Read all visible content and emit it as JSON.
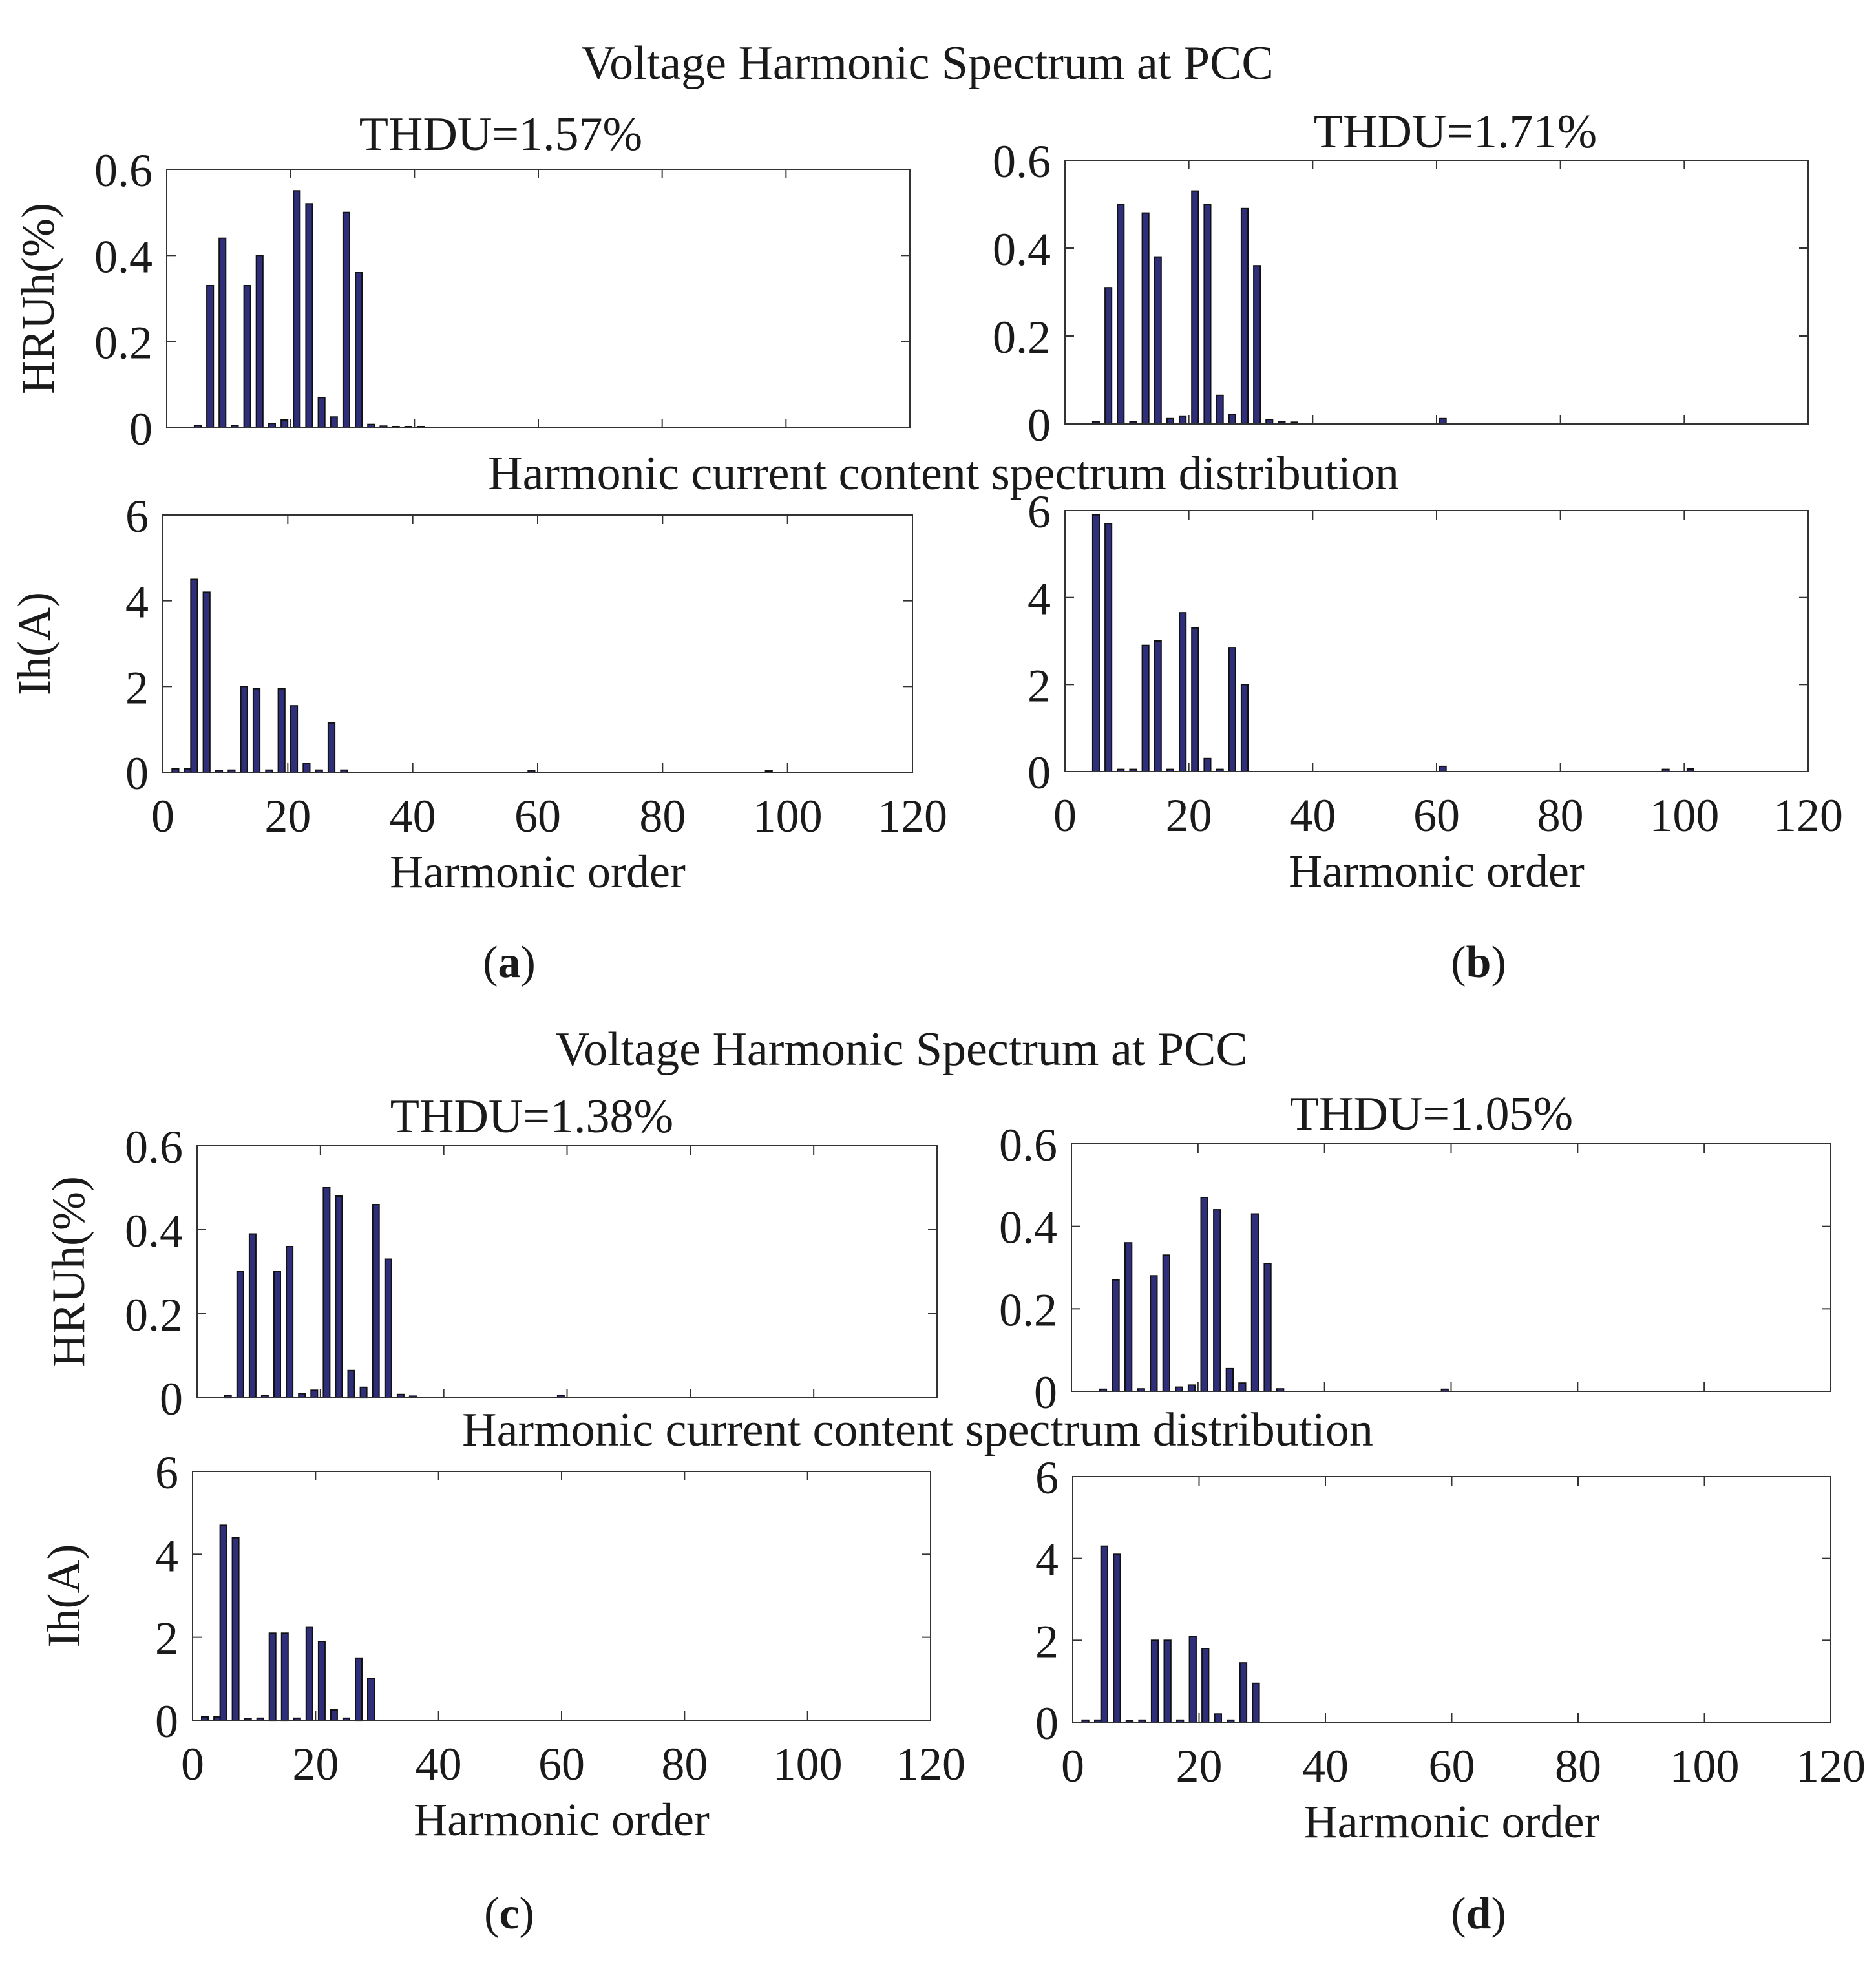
{
  "figure": {
    "bar_color": "#2e2e7a",
    "bar_edge": "#111111",
    "panels": [
      {
        "id": "a",
        "label": "a",
        "voltage_title": "Voltage Harmonic Spectrum at PCC",
        "thd_label": "THDU=1.57%",
        "current_title": "Harmonic current content spectrum distribution"
      },
      {
        "id": "b",
        "label": "b",
        "voltage_title": "",
        "thd_label": "THDU=1.71%",
        "current_title": ""
      },
      {
        "id": "c",
        "label": "c",
        "voltage_title": "Voltage Harmonic Spectrum at PCC",
        "thd_label": "THDU=1.38%",
        "current_title": "Harmonic current content spectrum distribution"
      },
      {
        "id": "d",
        "label": "d",
        "voltage_title": "",
        "thd_label": "THDU=1.05%",
        "current_title": ""
      }
    ]
  },
  "chart_data": [
    {
      "panel": "a",
      "plot": "voltage",
      "type": "bar",
      "ylabel": "HRUh(%)",
      "xlabel": "",
      "xlim": [
        0,
        120
      ],
      "ylim": [
        0,
        0.6
      ],
      "yticks": [
        0,
        0.2,
        0.4,
        0.6
      ],
      "ytick_labels": [
        "0",
        "0.2",
        "0.4",
        "0.6"
      ],
      "xticks": [],
      "xtick_labels": [],
      "x": [
        5,
        7,
        9,
        11,
        13,
        15,
        17,
        19,
        21,
        23,
        25,
        27,
        29,
        31,
        33,
        35,
        37,
        39,
        41
      ],
      "values": [
        0.006,
        0.33,
        0.44,
        0.006,
        0.33,
        0.4,
        0.01,
        0.018,
        0.55,
        0.52,
        0.07,
        0.025,
        0.5,
        0.36,
        0.008,
        0.004,
        0.003,
        0.003,
        0.002
      ]
    },
    {
      "panel": "a",
      "plot": "current",
      "type": "bar",
      "ylabel": "Ih(A)",
      "xlabel": "Harmonic order",
      "xlim": [
        0,
        120
      ],
      "ylim": [
        0,
        6
      ],
      "yticks": [
        0,
        2,
        4,
        6
      ],
      "ytick_labels": [
        "0",
        "2",
        "4",
        "6"
      ],
      "xticks": [
        0,
        20,
        40,
        60,
        80,
        100,
        120
      ],
      "xtick_labels": [
        "0",
        "20",
        "40",
        "60",
        "80",
        "100",
        "120"
      ],
      "x": [
        2,
        4,
        5,
        7,
        9,
        11,
        13,
        15,
        17,
        19,
        21,
        23,
        25,
        27,
        29,
        59,
        97
      ],
      "values": [
        0.08,
        0.08,
        4.5,
        4.2,
        0.04,
        0.05,
        2.0,
        1.95,
        0.05,
        1.95,
        1.55,
        0.2,
        0.05,
        1.15,
        0.05,
        0.04,
        0.03
      ]
    },
    {
      "panel": "b",
      "plot": "voltage",
      "type": "bar",
      "ylabel": "",
      "xlabel": "",
      "xlim": [
        0,
        120
      ],
      "ylim": [
        0,
        0.6
      ],
      "yticks": [
        0,
        0.2,
        0.4,
        0.6
      ],
      "ytick_labels": [
        "0",
        "0.2",
        "0.4",
        "0.6"
      ],
      "xticks": [],
      "xtick_labels": [],
      "x": [
        5,
        7,
        9,
        11,
        13,
        15,
        17,
        19,
        21,
        23,
        25,
        27,
        29,
        31,
        33,
        35,
        37,
        61
      ],
      "values": [
        0.005,
        0.31,
        0.5,
        0.005,
        0.48,
        0.38,
        0.012,
        0.018,
        0.53,
        0.5,
        0.065,
        0.022,
        0.49,
        0.36,
        0.01,
        0.005,
        0.004,
        0.012
      ]
    },
    {
      "panel": "b",
      "plot": "current",
      "type": "bar",
      "ylabel": "",
      "xlabel": "Harmonic order",
      "xlim": [
        0,
        120
      ],
      "ylim": [
        0,
        6
      ],
      "yticks": [
        0,
        2,
        4,
        6
      ],
      "ytick_labels": [
        "0",
        "2",
        "4",
        "6"
      ],
      "xticks": [
        0,
        20,
        40,
        60,
        80,
        100,
        120
      ],
      "xtick_labels": [
        "0",
        "20",
        "40",
        "60",
        "80",
        "100",
        "120"
      ],
      "x": [
        5,
        7,
        9,
        11,
        13,
        15,
        17,
        19,
        21,
        23,
        25,
        27,
        29,
        61,
        97,
        101
      ],
      "values": [
        5.9,
        5.7,
        0.05,
        0.05,
        2.9,
        3.0,
        0.05,
        3.65,
        3.3,
        0.3,
        0.05,
        2.85,
        2.0,
        0.12,
        0.05,
        0.06
      ]
    },
    {
      "panel": "c",
      "plot": "voltage",
      "type": "bar",
      "ylabel": "HRUh(%)",
      "xlabel": "",
      "xlim": [
        0,
        120
      ],
      "ylim": [
        0,
        0.6
      ],
      "yticks": [
        0,
        0.2,
        0.4,
        0.6
      ],
      "ytick_labels": [
        "0",
        "0.2",
        "0.4",
        "0.6"
      ],
      "xticks": [],
      "xtick_labels": [],
      "x": [
        5,
        7,
        9,
        11,
        13,
        15,
        17,
        19,
        21,
        23,
        25,
        27,
        29,
        31,
        33,
        35,
        59
      ],
      "values": [
        0.005,
        0.3,
        0.39,
        0.006,
        0.3,
        0.36,
        0.01,
        0.018,
        0.5,
        0.48,
        0.065,
        0.025,
        0.46,
        0.33,
        0.008,
        0.004,
        0.006
      ]
    },
    {
      "panel": "c",
      "plot": "current",
      "type": "bar",
      "ylabel": "Ih(A)",
      "xlabel": "Harmonic order",
      "xlim": [
        0,
        120
      ],
      "ylim": [
        0,
        6
      ],
      "yticks": [
        0,
        2,
        4,
        6
      ],
      "ytick_labels": [
        "0",
        "2",
        "4",
        "6"
      ],
      "xticks": [
        0,
        20,
        40,
        60,
        80,
        100,
        120
      ],
      "xtick_labels": [
        "0",
        "20",
        "40",
        "60",
        "80",
        "100",
        "120"
      ],
      "x": [
        2,
        4,
        5,
        7,
        9,
        11,
        13,
        15,
        17,
        19,
        21,
        23,
        25,
        27,
        29
      ],
      "values": [
        0.08,
        0.08,
        4.7,
        4.4,
        0.04,
        0.05,
        2.1,
        2.1,
        0.05,
        2.25,
        1.9,
        0.25,
        0.05,
        1.5,
        1.0
      ]
    },
    {
      "panel": "d",
      "plot": "voltage",
      "type": "bar",
      "ylabel": "",
      "xlabel": "",
      "xlim": [
        0,
        120
      ],
      "ylim": [
        0,
        0.6
      ],
      "yticks": [
        0,
        0.2,
        0.4,
        0.6
      ],
      "ytick_labels": [
        "0",
        "0.2",
        "0.4",
        "0.6"
      ],
      "xticks": [],
      "xtick_labels": [],
      "x": [
        5,
        7,
        9,
        11,
        13,
        15,
        17,
        19,
        21,
        23,
        25,
        27,
        29,
        31,
        33,
        59
      ],
      "values": [
        0.005,
        0.27,
        0.36,
        0.006,
        0.28,
        0.33,
        0.01,
        0.015,
        0.47,
        0.44,
        0.055,
        0.02,
        0.43,
        0.31,
        0.006,
        0.005
      ]
    },
    {
      "panel": "d",
      "plot": "current",
      "type": "bar",
      "ylabel": "",
      "xlabel": "Harmonic order",
      "xlim": [
        0,
        120
      ],
      "ylim": [
        0,
        6
      ],
      "yticks": [
        0,
        2,
        4,
        6
      ],
      "ytick_labels": [
        "0",
        "2",
        "4",
        "6"
      ],
      "xticks": [
        0,
        20,
        40,
        60,
        80,
        100,
        120
      ],
      "xtick_labels": [
        "0",
        "20",
        "40",
        "60",
        "80",
        "100",
        "120"
      ],
      "x": [
        2,
        4,
        5,
        7,
        9,
        11,
        13,
        15,
        17,
        19,
        21,
        23,
        25,
        27,
        29
      ],
      "values": [
        0.05,
        0.05,
        4.3,
        4.1,
        0.04,
        0.05,
        2.0,
        2.0,
        0.05,
        2.1,
        1.8,
        0.2,
        0.05,
        1.45,
        0.95
      ]
    }
  ]
}
